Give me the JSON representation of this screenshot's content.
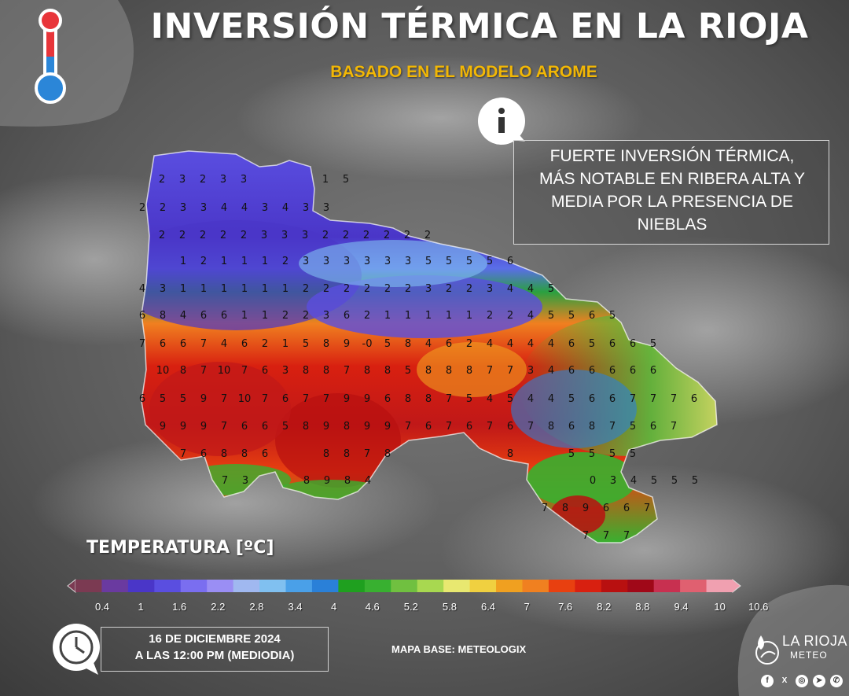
{
  "header": {
    "title": "INVERSIÓN TÉRMICA EN LA RIOJA",
    "subtitle": "BASADO EN EL MODELO AROME"
  },
  "info": {
    "text_lines": [
      "FUERTE INVERSIÓN TÉRMICA,",
      "MÁS NOTABLE EN RIBERA ALTA Y",
      "MEDIA POR LA PRESENCIA DE",
      "NIEBLAS"
    ],
    "icon": "info-icon"
  },
  "legend": {
    "title": "TEMPERATURA [ºC]",
    "ticks": [
      "0.4",
      "1",
      "1.6",
      "2.2",
      "2.8",
      "3.4",
      "4",
      "4.6",
      "5.2",
      "5.8",
      "6.4",
      "7",
      "7.6",
      "8.2",
      "8.8",
      "9.4",
      "10",
      "10.6"
    ],
    "colors": [
      "#7b3a52",
      "#6a3aa0",
      "#4a36c8",
      "#5a4ee0",
      "#7a6ef0",
      "#9a8ef4",
      "#a0b8f0",
      "#80c0f0",
      "#4aa0e8",
      "#2a80d8",
      "#1fa01f",
      "#38b030",
      "#70c040",
      "#a8d850",
      "#e8e870",
      "#f0d040",
      "#f0a020",
      "#f08020",
      "#e84010",
      "#d82010",
      "#b81010",
      "#a00818",
      "#c83050",
      "#e06070",
      "#f0a0b0"
    ]
  },
  "map": {
    "rows": [
      {
        "y": 227,
        "x0": 206,
        "dx": 26,
        "values": [
          "2",
          "3",
          "2",
          "3",
          "3",
          "",
          "",
          "",
          "1",
          "5"
        ]
      },
      {
        "y": 263,
        "x0": 181,
        "dx": 26,
        "values": [
          "2",
          "2",
          "3",
          "3",
          "4",
          "4",
          "3",
          "4",
          "3",
          "3"
        ]
      },
      {
        "y": 298,
        "x0": 206,
        "dx": 26,
        "values": [
          "2",
          "2",
          "2",
          "2",
          "2",
          "3",
          "3",
          "3",
          "2",
          "2",
          "2",
          "2",
          "2",
          "2"
        ]
      },
      {
        "y": 331,
        "x0": 233,
        "dx": 26,
        "values": [
          "1",
          "2",
          "1",
          "1",
          "1",
          "2",
          "3",
          "3",
          "3",
          "3",
          "3",
          "3",
          "5",
          "5",
          "5",
          "5",
          "6"
        ]
      },
      {
        "y": 366,
        "x0": 181,
        "dx": 26,
        "values": [
          "4",
          "3",
          "1",
          "1",
          "1",
          "1",
          "1",
          "1",
          "2",
          "2",
          "2",
          "2",
          "2",
          "2",
          "3",
          "2",
          "2",
          "3",
          "4",
          "4",
          "5"
        ]
      },
      {
        "y": 400,
        "x0": 181,
        "dx": 26,
        "values": [
          "6",
          "8",
          "4",
          "6",
          "6",
          "1",
          "1",
          "2",
          "2",
          "3",
          "6",
          "2",
          "1",
          "1",
          "1",
          "1",
          "1",
          "2",
          "2",
          "4",
          "5",
          "5",
          "6",
          "5"
        ]
      },
      {
        "y": 436,
        "x0": 181,
        "dx": 26,
        "values": [
          "7",
          "6",
          "6",
          "7",
          "4",
          "6",
          "2",
          "1",
          "5",
          "8",
          "9",
          "-0",
          "5",
          "8",
          "4",
          "6",
          "2",
          "4",
          "4",
          "4",
          "4",
          "6",
          "5",
          "6",
          "6",
          "5"
        ]
      },
      {
        "y": 470,
        "x0": 207,
        "dx": 26,
        "values": [
          "10",
          "8",
          "7",
          "10",
          "7",
          "6",
          "3",
          "8",
          "8",
          "7",
          "8",
          "8",
          "5",
          "8",
          "8",
          "8",
          "7",
          "7",
          "3",
          "4",
          "6",
          "6",
          "6",
          "6",
          "6"
        ]
      },
      {
        "y": 506,
        "x0": 181,
        "dx": 26,
        "values": [
          "6",
          "5",
          "5",
          "9",
          "7",
          "10",
          "7",
          "6",
          "7",
          "7",
          "9",
          "9",
          "6",
          "8",
          "8",
          "7",
          "5",
          "4",
          "5",
          "4",
          "4",
          "5",
          "6",
          "6",
          "7",
          "7",
          "7",
          "6"
        ]
      },
      {
        "y": 541,
        "x0": 207,
        "dx": 26,
        "values": [
          "9",
          "9",
          "9",
          "7",
          "6",
          "6",
          "5",
          "8",
          "9",
          "8",
          "9",
          "9",
          "7",
          "6",
          "7",
          "6",
          "7",
          "6",
          "7",
          "8",
          "6",
          "8",
          "7",
          "5",
          "6",
          "7"
        ]
      },
      {
        "y": 576,
        "x0": 233,
        "dx": 26,
        "values": [
          "7",
          "6",
          "8",
          "8",
          "6",
          "",
          "",
          "8",
          "8",
          "7",
          "8",
          "",
          "",
          "",
          "",
          "",
          "8",
          "",
          "",
          "5",
          "5",
          "5",
          "5"
        ]
      },
      {
        "y": 610,
        "x0": 286,
        "dx": 26,
        "values": [
          "7",
          "3",
          "",
          "",
          "8",
          "9",
          "8",
          "4",
          "",
          "",
          "",
          "",
          "",
          "",
          "",
          "",
          "",
          "",
          "0",
          "3",
          "4",
          "5",
          "5",
          "5"
        ]
      },
      {
        "y": 645,
        "x0": 693,
        "dx": 26,
        "values": [
          "7",
          "8",
          "9",
          "6",
          "6",
          "7"
        ]
      },
      {
        "y": 680,
        "x0": 745,
        "dx": 26,
        "values": [
          "7",
          "7",
          "7"
        ]
      }
    ]
  },
  "footer": {
    "date_line1": "16 DE DICIEMBRE 2024",
    "date_line2": "A LAS 12:00 PM (MEDIODIA)",
    "basemap": "MAPA BASE: METEOLOGIX",
    "brand_name": "LA RIOJA",
    "brand_sub": "METEO",
    "social": [
      "f",
      "X",
      "◎",
      "➤",
      "✆"
    ]
  }
}
